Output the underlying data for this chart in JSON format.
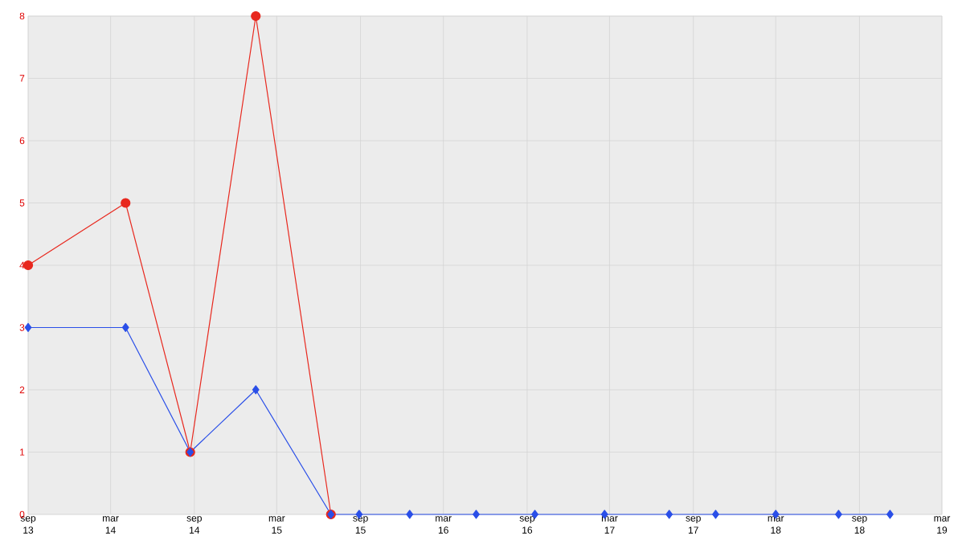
{
  "chart_data": {
    "type": "line",
    "x": [
      "2013-09-01",
      "2014-04-03",
      "2014-08-23",
      "2015-01-14",
      "2015-06-28",
      "2015-08-29",
      "2015-12-18",
      "2016-05-12",
      "2016-09-18",
      "2017-02-18",
      "2017-07-10",
      "2017-10-20",
      "2018-03-01",
      "2018-07-17",
      "2018-11-07"
    ],
    "series": [
      {
        "color": "#e8281e",
        "marker": "circle",
        "x": [
          "2013-09-01",
          "2014-04-03",
          "2014-08-23",
          "2015-01-14",
          "2015-06-28"
        ],
        "values": [
          4,
          5,
          1,
          8,
          0
        ]
      },
      {
        "color": "#2a4fe8",
        "marker": "diamond",
        "values": [
          3,
          3,
          1,
          2,
          0,
          0,
          0,
          0,
          0,
          0,
          0,
          0,
          0,
          0,
          0
        ]
      }
    ],
    "xlim": [
      "2013-09-01",
      "2019-03-01"
    ],
    "xticks": [
      {
        "value": "2013-09-01",
        "label": "sep 13"
      },
      {
        "value": "2014-03-01",
        "label": "mar 14"
      },
      {
        "value": "2014-09-01",
        "label": "sep 14"
      },
      {
        "value": "2015-03-01",
        "label": "mar 15"
      },
      {
        "value": "2015-09-01",
        "label": "sep 15"
      },
      {
        "value": "2016-03-01",
        "label": "mar 16"
      },
      {
        "value": "2016-09-01",
        "label": "sep 16"
      },
      {
        "value": "2017-03-01",
        "label": "mar 17"
      },
      {
        "value": "2017-09-01",
        "label": "sep 17"
      },
      {
        "value": "2018-03-01",
        "label": "mar 18"
      },
      {
        "value": "2018-09-01",
        "label": "sep 18"
      },
      {
        "value": "2019-03-01",
        "label": "mar 19"
      }
    ],
    "ylim": [
      0,
      8
    ],
    "yticks": [
      0,
      1,
      2,
      3,
      4,
      5,
      6,
      7,
      8
    ],
    "grid": true
  }
}
